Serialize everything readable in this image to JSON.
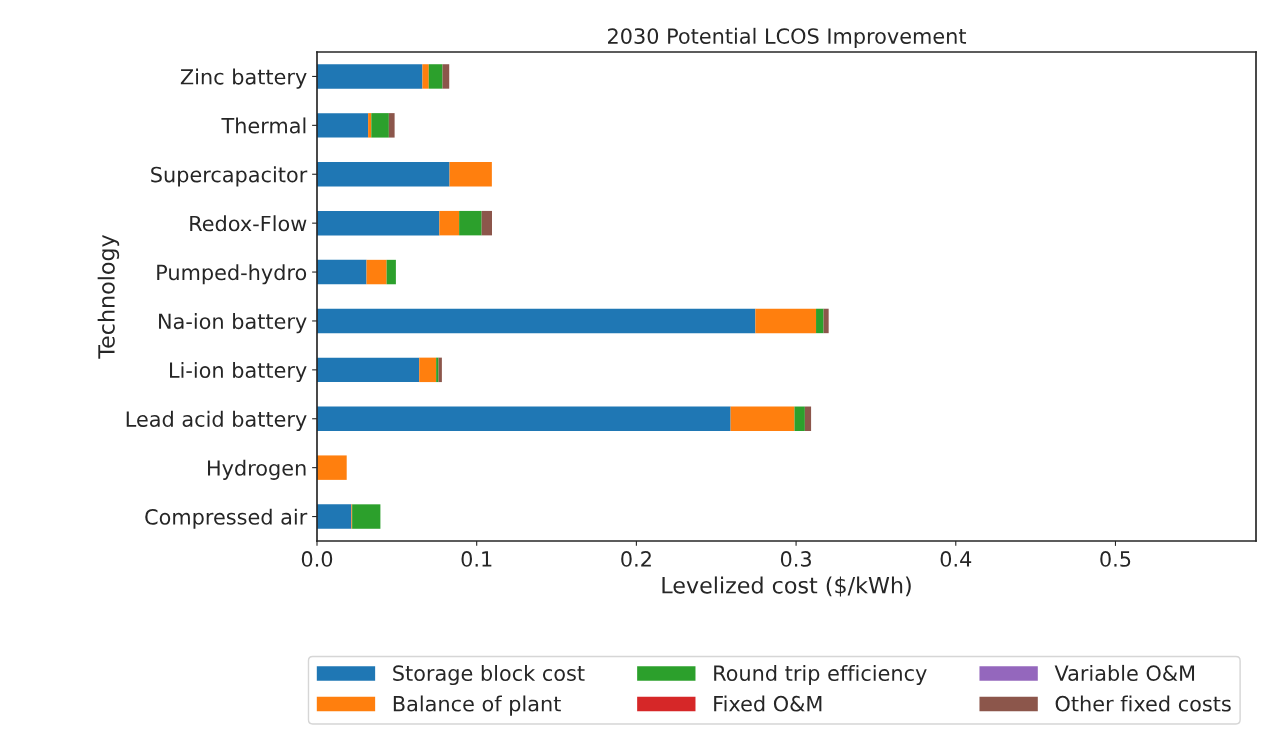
{
  "chart_data": {
    "type": "bar",
    "orientation": "horizontal",
    "stacked": true,
    "title": "2030 Potential LCOS Improvement",
    "xlabel": "Levelized cost ($/kWh)",
    "ylabel": "Technology",
    "categories": [
      "Zinc battery",
      "Thermal",
      "Supercapacitor",
      "Redox-Flow",
      "Pumped-hydro",
      "Na-ion battery",
      "Li-ion battery",
      "Lead acid battery",
      "Hydrogen",
      "Compressed air"
    ],
    "series": [
      {
        "name": "Storage block cost",
        "color": "#1f77b4",
        "values": [
          0.066,
          0.032,
          0.083,
          0.0766,
          0.031,
          0.2745,
          0.064,
          0.259,
          0,
          0.0215
        ]
      },
      {
        "name": "Balance of plant",
        "color": "#ff7f0e",
        "values": [
          0.004,
          0.002,
          0.0265,
          0.0124,
          0.0126,
          0.038,
          0.0106,
          0.04,
          0.0186,
          0.0005
        ]
      },
      {
        "name": "Round trip efficiency",
        "color": "#2ca02c",
        "values": [
          0.0086,
          0.011,
          0,
          0.0141,
          0.0058,
          0.0047,
          0.0015,
          0.0065,
          0,
          0.0177
        ]
      },
      {
        "name": "Fixed O&M",
        "color": "#d62728",
        "values": [
          0,
          0,
          0,
          0,
          0,
          0,
          0,
          0,
          0,
          0
        ]
      },
      {
        "name": "Variable O&M",
        "color": "#9467bd",
        "values": [
          0,
          0,
          0,
          0,
          0,
          0,
          0,
          0,
          0,
          0
        ]
      },
      {
        "name": "Other fixed costs",
        "color": "#8c564b",
        "values": [
          0.0042,
          0.0036,
          0,
          0.0065,
          0,
          0.0032,
          0.0021,
          0.0039,
          0,
          0
        ]
      }
    ],
    "xlim": [
      0,
      0.588
    ],
    "xticks": [
      {
        "value": 0,
        "label": "0.0"
      },
      0.1,
      0.2,
      0.3,
      0.4,
      0.5
    ],
    "grid": false,
    "legend": "bottom"
  }
}
